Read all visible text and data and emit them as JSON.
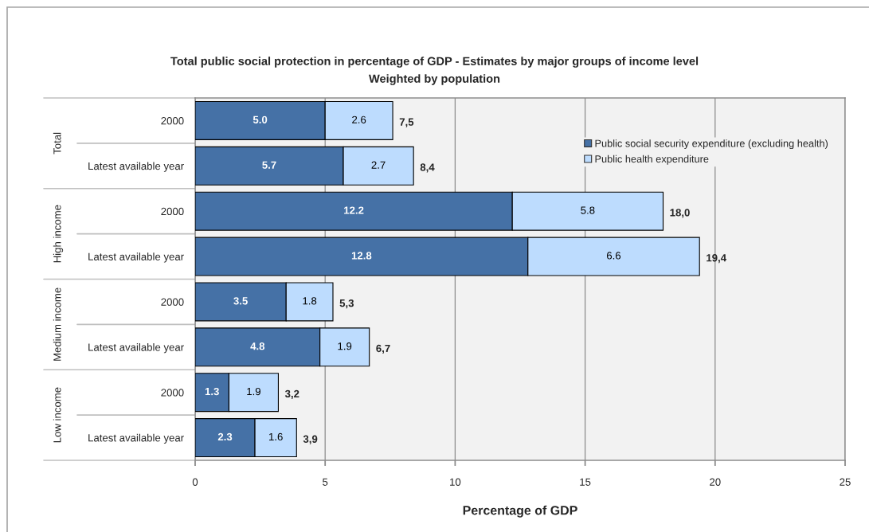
{
  "chart_data": {
    "type": "bar",
    "orientation": "horizontal",
    "stacked": true,
    "title": "Total public social protection in percentage of GDP - Estimates by major groups of income level",
    "subtitle": "Weighted by population",
    "xlabel": "Percentage of GDP",
    "categories": [
      "2000",
      "Latest available year",
      "2000",
      "Latest available year",
      "2000",
      "Latest available year",
      "2000",
      "Latest available year"
    ],
    "series": [
      {
        "name": "Public social security expenditure (excluding health)",
        "color": "#4571a6",
        "values": [
          5.0,
          5.7,
          12.2,
          12.8,
          3.5,
          4.8,
          1.3,
          2.3
        ],
        "value_labels": [
          "5.0",
          "5.7",
          "12.2",
          "12.8",
          "3.5",
          "4.8",
          "1.3",
          "2.3"
        ]
      },
      {
        "name": "Public health expenditure",
        "color": "#bddcfe",
        "values": [
          2.6,
          2.7,
          5.8,
          6.6,
          1.8,
          1.9,
          1.9,
          1.6
        ],
        "value_labels": [
          "2.6",
          "2.7",
          "5.8",
          "6.6",
          "1.8",
          "1.9",
          "1.9",
          "1.6"
        ]
      }
    ],
    "totals": [
      "7,5",
      "8,4",
      "18,0",
      "19,4",
      "5,3",
      "6,7",
      "3,2",
      "3,9"
    ],
    "xlim": [
      0,
      25
    ],
    "xticks": [
      0,
      5,
      10,
      15,
      20,
      25
    ],
    "grid": "x",
    "legend": "top right",
    "annotations": [
      "Total",
      "High income",
      "Medium income",
      "Low income"
    ]
  }
}
